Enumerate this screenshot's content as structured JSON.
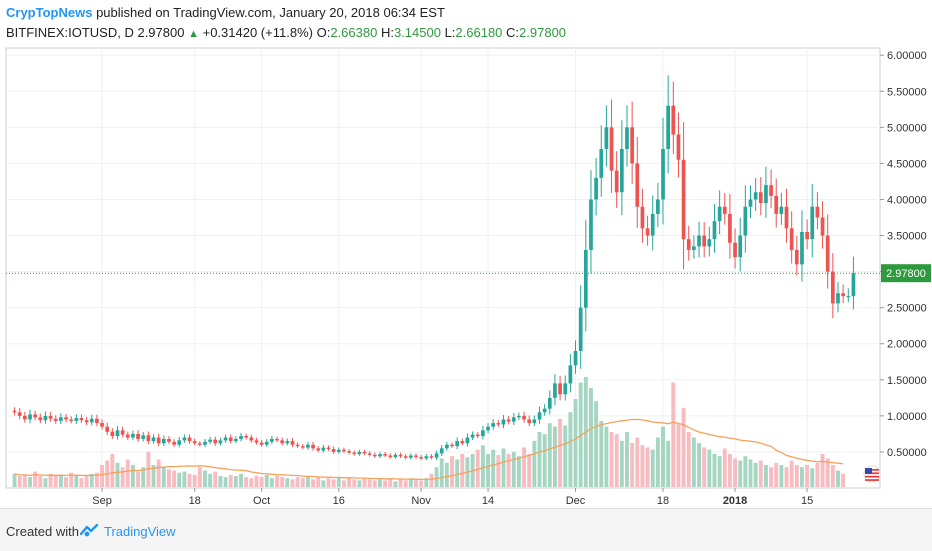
{
  "header": {
    "author": "CrypTopNews",
    "published_text": "published on TradingView.com, January 20, 2018 06:34 EST",
    "symbol_line": "BITFINEX:IOTUSD, D",
    "price": "2.97800",
    "change": "+0.31420 (+11.8%)",
    "o_label": "O:",
    "o_value": "2.66380",
    "h_label": "H:",
    "h_value": "3.14500",
    "l_label": "L:",
    "l_value": "2.66180",
    "c_label": "C:",
    "c_value": "2.97800"
  },
  "footer": {
    "created_with": "Created with",
    "brand": "TradingView"
  },
  "colors": {
    "up": "#26a69a",
    "down": "#ef5350",
    "up_volume": "#a5d6c2",
    "down_volume": "#f8bbc0",
    "volume_ma": "#f6a15a",
    "price_line": "#2e9a3e",
    "grid": "#eef0f3",
    "axis_text": "#333333"
  },
  "chart_data": {
    "type": "candlestick",
    "price_axis": {
      "ylim": [
        0.0,
        6.1
      ],
      "ticks": [
        "0.50000",
        "1.00000",
        "1.50000",
        "2.00000",
        "2.50000",
        "3.00000",
        "3.50000",
        "4.00000",
        "4.50000",
        "5.00000",
        "5.50000",
        "6.00000"
      ]
    },
    "last_price_label": "2.97800",
    "last_price": 2.978,
    "x_ticks": [
      {
        "label": "Sep",
        "index": 17
      },
      {
        "label": "18",
        "index": 35
      },
      {
        "label": "Oct",
        "index": 48
      },
      {
        "label": "16",
        "index": 63
      },
      {
        "label": "Nov",
        "index": 79
      },
      {
        "label": "14",
        "index": 92
      },
      {
        "label": "Dec",
        "index": 109
      },
      {
        "label": "18",
        "index": 126
      },
      {
        "label": "2018",
        "index": 140
      },
      {
        "label": "15",
        "index": 154
      }
    ],
    "closes": [
      1.05,
      1.0,
      0.95,
      1.02,
      0.98,
      0.94,
      1.0,
      0.96,
      0.93,
      0.98,
      0.95,
      0.93,
      0.97,
      0.94,
      0.91,
      0.96,
      0.9,
      0.85,
      0.78,
      0.72,
      0.8,
      0.74,
      0.7,
      0.75,
      0.68,
      0.73,
      0.65,
      0.7,
      0.62,
      0.68,
      0.64,
      0.6,
      0.66,
      0.7,
      0.65,
      0.62,
      0.6,
      0.64,
      0.67,
      0.62,
      0.66,
      0.7,
      0.65,
      0.68,
      0.72,
      0.7,
      0.66,
      0.63,
      0.6,
      0.64,
      0.68,
      0.66,
      0.62,
      0.65,
      0.6,
      0.58,
      0.56,
      0.6,
      0.55,
      0.52,
      0.56,
      0.54,
      0.5,
      0.53,
      0.51,
      0.49,
      0.47,
      0.5,
      0.48,
      0.46,
      0.44,
      0.47,
      0.45,
      0.43,
      0.46,
      0.44,
      0.42,
      0.45,
      0.43,
      0.41,
      0.44,
      0.42,
      0.48,
      0.55,
      0.6,
      0.58,
      0.65,
      0.62,
      0.7,
      0.74,
      0.72,
      0.8,
      0.85,
      0.9,
      0.88,
      0.95,
      0.92,
      0.98,
      1.0,
      0.95,
      0.9,
      0.95,
      1.05,
      1.1,
      1.25,
      1.45,
      1.3,
      1.45,
      1.7,
      1.9,
      2.5,
      3.3,
      4.0,
      4.3,
      4.7,
      5.0,
      4.4,
      4.1,
      4.7,
      5.0,
      4.5,
      3.9,
      3.6,
      3.5,
      3.8,
      4.0,
      4.7,
      5.3,
      4.9,
      4.55,
      3.45,
      3.3,
      3.35,
      3.5,
      3.35,
      3.45,
      3.7,
      3.9,
      3.8,
      3.4,
      3.2,
      3.5,
      3.9,
      4.0,
      4.1,
      3.95,
      4.2,
      4.05,
      3.8,
      3.9,
      3.6,
      3.3,
      3.1,
      3.55,
      3.45,
      3.9,
      3.75,
      3.5,
      3.0,
      2.56,
      2.7,
      2.66,
      2.66,
      2.978
    ],
    "volumes": [
      0.12,
      0.1,
      0.11,
      0.09,
      0.14,
      0.1,
      0.08,
      0.12,
      0.1,
      0.11,
      0.09,
      0.13,
      0.1,
      0.08,
      0.11,
      0.12,
      0.13,
      0.2,
      0.24,
      0.3,
      0.22,
      0.18,
      0.25,
      0.2,
      0.14,
      0.18,
      0.32,
      0.2,
      0.25,
      0.18,
      0.16,
      0.15,
      0.13,
      0.14,
      0.12,
      0.11,
      0.18,
      0.15,
      0.12,
      0.14,
      0.1,
      0.09,
      0.11,
      0.1,
      0.12,
      0.09,
      0.08,
      0.1,
      0.09,
      0.11,
      0.08,
      0.1,
      0.09,
      0.08,
      0.07,
      0.09,
      0.08,
      0.1,
      0.07,
      0.09,
      0.06,
      0.08,
      0.07,
      0.09,
      0.06,
      0.08,
      0.07,
      0.06,
      0.08,
      0.07,
      0.06,
      0.07,
      0.06,
      0.08,
      0.05,
      0.07,
      0.06,
      0.08,
      0.07,
      0.06,
      0.08,
      0.12,
      0.18,
      0.26,
      0.22,
      0.28,
      0.25,
      0.3,
      0.27,
      0.3,
      0.34,
      0.38,
      0.3,
      0.34,
      0.29,
      0.35,
      0.3,
      0.32,
      0.28,
      0.36,
      0.3,
      0.42,
      0.5,
      0.48,
      0.58,
      0.55,
      0.62,
      0.56,
      0.68,
      0.8,
      0.95,
      1.0,
      0.9,
      0.78,
      0.6,
      0.55,
      0.5,
      0.48,
      0.42,
      0.5,
      0.4,
      0.45,
      0.38,
      0.36,
      0.34,
      0.45,
      0.55,
      0.42,
      0.95,
      0.58,
      0.72,
      0.5,
      0.45,
      0.4,
      0.36,
      0.34,
      0.3,
      0.28,
      0.35,
      0.3,
      0.26,
      0.24,
      0.28,
      0.25,
      0.22,
      0.24,
      0.2,
      0.18,
      0.22,
      0.2,
      0.18,
      0.24,
      0.2,
      0.18,
      0.2,
      0.17,
      0.22,
      0.3,
      0.26,
      0.2,
      0.15,
      0.12
    ]
  }
}
